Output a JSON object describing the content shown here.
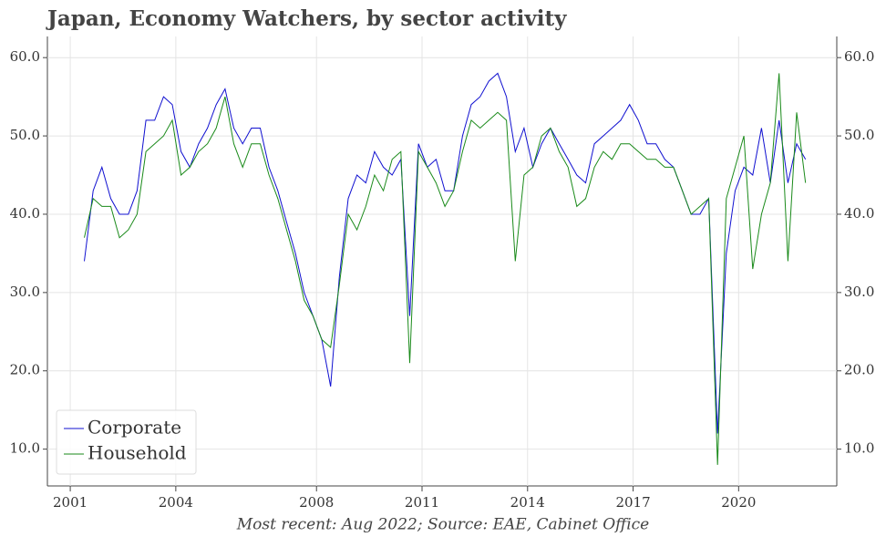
{
  "chart_data": {
    "type": "line",
    "title": "Japan, Economy Watchers, by sector activity",
    "caption": "Most recent: Aug 2022; Source: EAE, Cabinet Office",
    "x": [
      2001.4,
      2001.65,
      2001.9,
      2002.15,
      2002.4,
      2002.65,
      2002.9,
      2003.15,
      2003.4,
      2003.65,
      2003.9,
      2004.15,
      2004.4,
      2004.65,
      2004.9,
      2005.15,
      2005.4,
      2005.65,
      2005.9,
      2006.15,
      2006.4,
      2006.65,
      2006.9,
      2007.15,
      2007.4,
      2007.65,
      2007.9,
      2008.15,
      2008.4,
      2008.65,
      2008.9,
      2009.15,
      2009.4,
      2009.65,
      2009.9,
      2010.15,
      2010.4,
      2010.65,
      2010.9,
      2011.15,
      2011.4,
      2011.65,
      2011.9,
      2012.15,
      2012.4,
      2012.65,
      2012.9,
      2013.15,
      2013.4,
      2013.65,
      2013.9,
      2014.15,
      2014.4,
      2014.65,
      2014.9,
      2015.15,
      2015.4,
      2015.65,
      2015.9,
      2016.15,
      2016.4,
      2016.65,
      2016.9,
      2017.15,
      2017.4,
      2017.65,
      2017.9,
      2018.15,
      2018.4,
      2018.65,
      2018.9,
      2019.15,
      2019.4,
      2019.65,
      2019.9,
      2020.15,
      2020.4,
      2020.65,
      2020.9,
      2021.15,
      2021.4,
      2021.65,
      2021.9
    ],
    "series": [
      {
        "name": "Corporate",
        "color": "#1010d0",
        "values": [
          34,
          43,
          46,
          42,
          40,
          40,
          43,
          52,
          52,
          55,
          54,
          48,
          46,
          49,
          51,
          54,
          56,
          51,
          49,
          51,
          51,
          46,
          43,
          39,
          35,
          30,
          27,
          24,
          18,
          32,
          42,
          45,
          44,
          48,
          46,
          45,
          47,
          27,
          49,
          46,
          47,
          43,
          43,
          50,
          54,
          55,
          57,
          58,
          55,
          48,
          51,
          46,
          49,
          51,
          49,
          47,
          45,
          44,
          49,
          50,
          51,
          52,
          54,
          52,
          49,
          49,
          47,
          46,
          43,
          40,
          40,
          42,
          12,
          35,
          43,
          46,
          45,
          51,
          44,
          52,
          44,
          49,
          47
        ]
      },
      {
        "name": "Household",
        "color": "#1a8a1a",
        "values": [
          37,
          42,
          41,
          41,
          37,
          38,
          40,
          48,
          49,
          50,
          52,
          45,
          46,
          48,
          49,
          51,
          55,
          49,
          46,
          49,
          49,
          45,
          42,
          38,
          34,
          29,
          27,
          24,
          23,
          31,
          40,
          38,
          41,
          45,
          43,
          47,
          48,
          21,
          48,
          46,
          44,
          41,
          43,
          48,
          52,
          51,
          52,
          53,
          52,
          34,
          45,
          46,
          50,
          51,
          48,
          46,
          41,
          42,
          46,
          48,
          47,
          49,
          49,
          48,
          47,
          47,
          46,
          46,
          43,
          40,
          41,
          42,
          8,
          42,
          46,
          50,
          33,
          40,
          44,
          58,
          34,
          53,
          44
        ]
      }
    ],
    "xlim": [
      2000.35,
      2022.79
    ],
    "ylim": [
      5.3,
      62.7
    ],
    "xticks": [
      2001,
      2004,
      2008,
      2011,
      2014,
      2017,
      2020
    ],
    "yticks": [
      {
        "value": 10,
        "label": "10.0"
      },
      {
        "value": 20,
        "label": "20.0"
      },
      {
        "value": 30,
        "label": "30.0"
      },
      {
        "value": 40,
        "label": "40.0"
      },
      {
        "value": 50,
        "label": "50.0"
      },
      {
        "value": 60,
        "label": "60.0"
      }
    ],
    "grid": true,
    "legend": "lower left"
  }
}
